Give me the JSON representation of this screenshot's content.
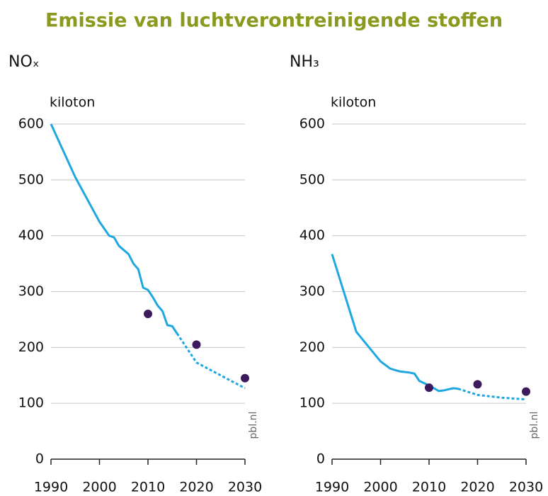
{
  "title": "Emissie van luchtverontreinigende stoffen",
  "chart_data": [
    {
      "type": "line",
      "title": "NOₓ",
      "y_label": "kiloton",
      "source": "pbl.nl",
      "xlim": [
        1990,
        2030
      ],
      "xticks": [
        1990,
        2000,
        2010,
        2020,
        2030
      ],
      "ylim": [
        0,
        600
      ],
      "yticks": [
        0,
        100,
        200,
        300,
        400,
        500,
        600
      ],
      "grid": true,
      "series": [
        {
          "style": "solid",
          "color": "#1ea7e1",
          "x": [
            1990,
            1995,
            2000,
            2002,
            2003,
            2004,
            2006,
            2007,
            2008,
            2009,
            2010,
            2011,
            2012,
            2013,
            2014,
            2015,
            2016
          ],
          "values": [
            600,
            505,
            425,
            400,
            397,
            382,
            367,
            350,
            340,
            307,
            303,
            290,
            275,
            265,
            240,
            238,
            225
          ]
        },
        {
          "style": "dashed",
          "color": "#1ea7e1",
          "x": [
            2016,
            2020,
            2025,
            2030
          ],
          "values": [
            225,
            173,
            150,
            127
          ]
        },
        {
          "style": "dots",
          "color": "#3d1a5c",
          "x": [
            2010,
            2020,
            2030
          ],
          "values": [
            260,
            205,
            145
          ]
        }
      ]
    },
    {
      "type": "line",
      "title": "NH₃",
      "y_label": "kiloton",
      "source": "pbl.nl",
      "xlim": [
        1990,
        2030
      ],
      "xticks": [
        1990,
        2000,
        2010,
        2020,
        2030
      ],
      "ylim": [
        0,
        600
      ],
      "yticks": [
        0,
        100,
        200,
        300,
        400,
        500,
        600
      ],
      "grid": true,
      "series": [
        {
          "style": "solid",
          "color": "#1ea7e1",
          "x": [
            1990,
            1995,
            2000,
            2002,
            2004,
            2006,
            2007,
            2008,
            2010,
            2011,
            2012,
            2013,
            2014,
            2015,
            2016
          ],
          "values": [
            367,
            228,
            175,
            162,
            157,
            155,
            153,
            140,
            132,
            127,
            122,
            123,
            125,
            127,
            126
          ]
        },
        {
          "style": "dashed",
          "color": "#1ea7e1",
          "x": [
            2016,
            2020,
            2025,
            2030
          ],
          "values": [
            126,
            115,
            110,
            107
          ]
        },
        {
          "style": "dots",
          "color": "#3d1a5c",
          "x": [
            2010,
            2020,
            2030
          ],
          "values": [
            128,
            134,
            121
          ]
        }
      ]
    }
  ]
}
